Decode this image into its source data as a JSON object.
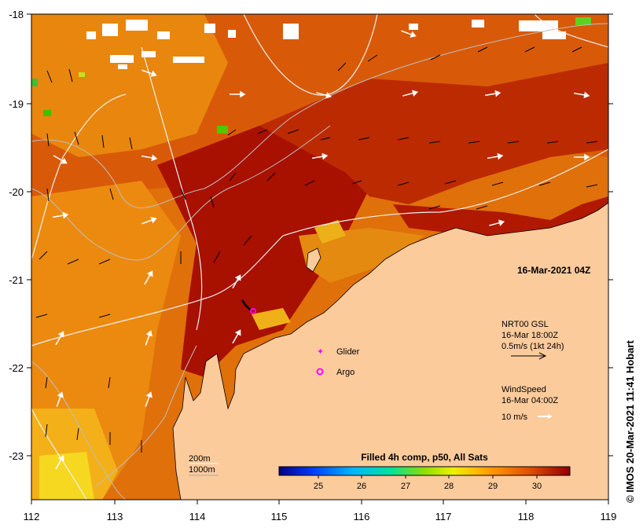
{
  "map": {
    "lon_ticks": [
      "112",
      "113",
      "114",
      "115",
      "116",
      "117",
      "118",
      "119"
    ],
    "lat_ticks": [
      "-18",
      "-19",
      "-20",
      "-21",
      "-22",
      "-23"
    ],
    "timestamp": "16-Mar-2021 04Z",
    "credit": "© IMOS 20-Mar-2021 11:41 Hobart"
  },
  "legend": {
    "glider": "Glider",
    "argo": "Argo",
    "current_title": "NRT00 GSL",
    "current_time": "16-Mar 18:00Z",
    "current_scale": "0.5m/s (1kt 24h)",
    "wind_title": "WindSpeed",
    "wind_time": "16-Mar 04:00Z",
    "wind_scale": "10 m/s",
    "isobath1": "200m",
    "isobath2": "1000m"
  },
  "colorbar": {
    "title": "Filled 4h comp, p50, All Sats",
    "ticks": [
      "25",
      "26",
      "27",
      "28",
      "29",
      "30"
    ],
    "colors": [
      "#000080",
      "#0050ff",
      "#00c8ff",
      "#00e070",
      "#e8f000",
      "#ff9000",
      "#d04000",
      "#8b0000"
    ]
  }
}
